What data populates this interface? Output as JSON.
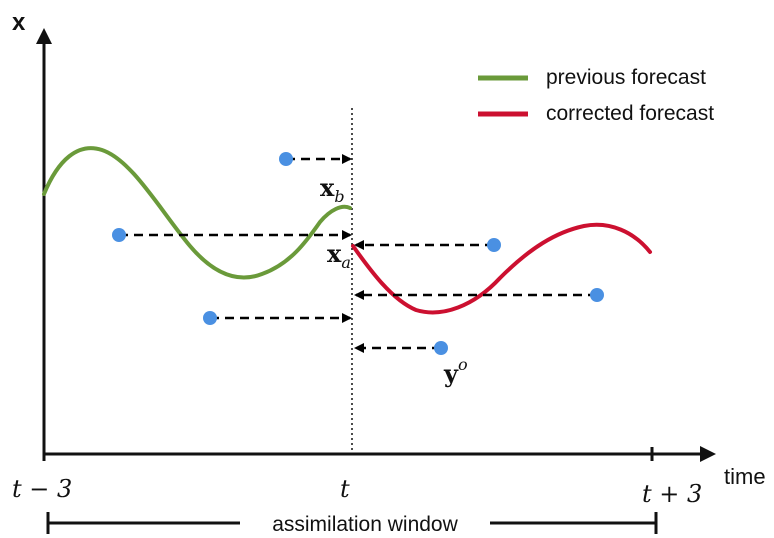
{
  "axes": {
    "y_label": "x",
    "x_label": "time"
  },
  "legend": {
    "previous": {
      "label": "previous forecast",
      "color": "#6a9a3a"
    },
    "corrected": {
      "label": "corrected forecast",
      "color": "#cc1030"
    }
  },
  "ticks": {
    "left": "t − 3",
    "mid": "t",
    "right": "t + 3"
  },
  "annotations": {
    "background": {
      "base": "x",
      "sub": "b"
    },
    "analysis": {
      "base": "x",
      "sub": "a"
    },
    "observation": {
      "base": "y",
      "sup": "o"
    }
  },
  "window": {
    "label": "assimilation window"
  },
  "colors": {
    "observation_dot": "#4a90e2",
    "axis": "#111111",
    "arrow": "#000000"
  }
}
